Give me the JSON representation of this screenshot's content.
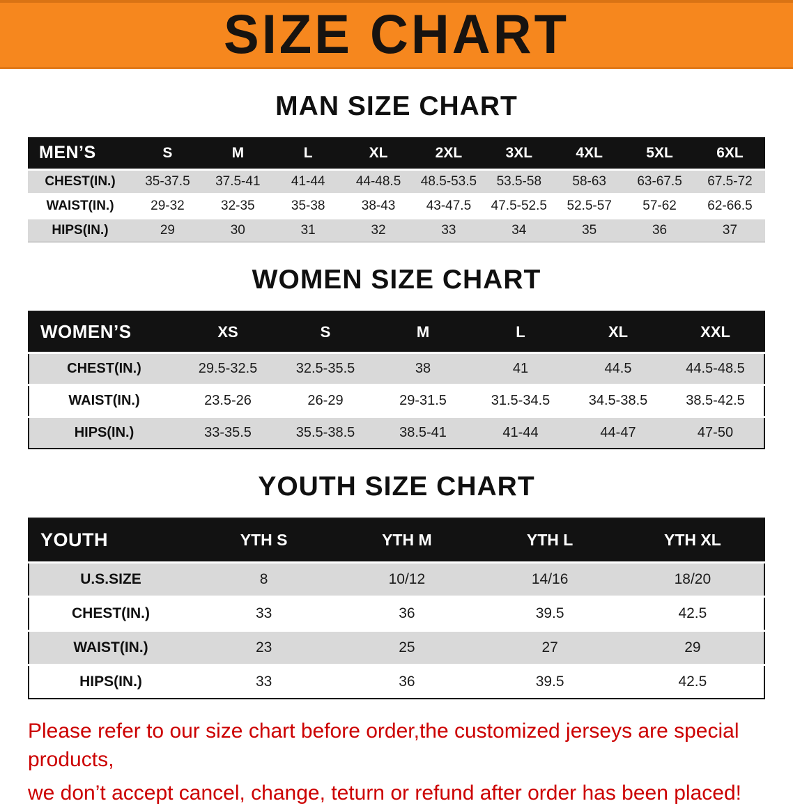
{
  "banner": {
    "title": "SIZE CHART",
    "bg": "#F6871E"
  },
  "sections": [
    {
      "id": "men",
      "heading": "MAN SIZE CHART",
      "table": {
        "label": "MEN’S",
        "columns": [
          "S",
          "M",
          "L",
          "XL",
          "2XL",
          "3XL",
          "4XL",
          "5XL",
          "6XL"
        ],
        "rows": [
          {
            "label": "CHEST(IN.)",
            "values": [
              "35-37.5",
              "37.5-41",
              "41-44",
              "44-48.5",
              "48.5-53.5",
              "53.5-58",
              "58-63",
              "63-67.5",
              "67.5-72"
            ]
          },
          {
            "label": "WAIST(IN.)",
            "values": [
              "29-32",
              "32-35",
              "35-38",
              "38-43",
              "43-47.5",
              "47.5-52.5",
              "52.5-57",
              "57-62",
              "62-66.5"
            ]
          },
          {
            "label": "HIPS(IN.)",
            "values": [
              "29",
              "30",
              "31",
              "32",
              "33",
              "34",
              "35",
              "36",
              "37"
            ]
          }
        ]
      }
    },
    {
      "id": "women",
      "heading": "WOMEN SIZE CHART",
      "table": {
        "label": "WOMEN’S",
        "columns": [
          "XS",
          "S",
          "M",
          "L",
          "XL",
          "XXL"
        ],
        "rows": [
          {
            "label": "CHEST(IN.)",
            "values": [
              "29.5-32.5",
              "32.5-35.5",
              "38",
              "41",
              "44.5",
              "44.5-48.5"
            ]
          },
          {
            "label": "WAIST(IN.)",
            "values": [
              "23.5-26",
              "26-29",
              "29-31.5",
              "31.5-34.5",
              "34.5-38.5",
              "38.5-42.5"
            ]
          },
          {
            "label": "HIPS(IN.)",
            "values": [
              "33-35.5",
              "35.5-38.5",
              "38.5-41",
              "41-44",
              "44-47",
              "47-50"
            ]
          }
        ]
      }
    },
    {
      "id": "youth",
      "heading": "YOUTH SIZE CHART",
      "table": {
        "label": "YOUTH",
        "columns": [
          "YTH S",
          "YTH M",
          "YTH L",
          "YTH XL"
        ],
        "rows": [
          {
            "label": "U.S.SIZE",
            "values": [
              "8",
              "10/12",
              "14/16",
              "18/20"
            ]
          },
          {
            "label": "CHEST(IN.)",
            "values": [
              "33",
              "36",
              "39.5",
              "42.5"
            ]
          },
          {
            "label": "WAIST(IN.)",
            "values": [
              "23",
              "25",
              "27",
              "29"
            ]
          },
          {
            "label": "HIPS(IN.)",
            "values": [
              "33",
              "36",
              "39.5",
              "42.5"
            ]
          }
        ]
      }
    }
  ],
  "footer": {
    "color": "#CC0000",
    "lines": [
      "Please refer to our size chart before order,the customized jerseys are special products,",
      "we don’t accept cancel, change, teturn or refund after order has been placed!"
    ]
  }
}
